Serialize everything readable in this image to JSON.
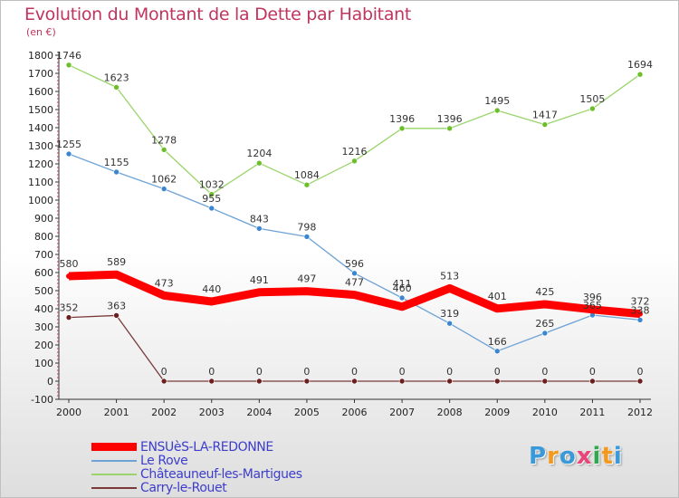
{
  "title": "Evolution du Montant de la Dette par Habitant",
  "unit_label": "(en €)",
  "logo": {
    "text": "Proxiti",
    "colors": [
      "#3a9ad9",
      "#f29a1d",
      "#3a9ad9",
      "#e8457a",
      "#2fa84f",
      "#f29a1d",
      "#3a9ad9"
    ]
  },
  "chart_data": {
    "type": "line",
    "x": [
      "2000",
      "2001",
      "2002",
      "2003",
      "2004",
      "2005",
      "2006",
      "2007",
      "2008",
      "2009",
      "2010",
      "2011",
      "2012"
    ],
    "ylim": [
      -100,
      1800
    ],
    "yticks": [
      -100,
      0,
      100,
      200,
      300,
      400,
      500,
      600,
      700,
      800,
      900,
      1000,
      1100,
      1200,
      1300,
      1400,
      1500,
      1600,
      1700,
      1800
    ],
    "grid": false,
    "legend_position": "bottom-left",
    "series": [
      {
        "name": "ENSUèS-LA-REDONNE",
        "color": "#ff0000",
        "marker": "#ff0000",
        "width": 9,
        "values": [
          580,
          589,
          473,
          440,
          491,
          497,
          477,
          411,
          513,
          401,
          425,
          396,
          372
        ],
        "labels": [
          "580",
          "589",
          "473",
          "440",
          "491",
          "497",
          "477",
          "",
          "513",
          "401",
          "425",
          "396",
          "372"
        ]
      },
      {
        "name": "Le Rove",
        "color": "#6fa3d6",
        "marker": "#3a86d0",
        "width": 1.3,
        "values": [
          1255,
          1155,
          1062,
          955,
          843,
          798,
          596,
          460,
          319,
          166,
          265,
          365,
          338
        ],
        "labels": [
          "1255",
          "1155",
          "1062",
          "955",
          "843",
          "798",
          "596",
          "460",
          "319",
          "166",
          "265",
          "365",
          "338"
        ]
      },
      {
        "name": "Châteauneuf-les-Martigues",
        "color": "#9ad46a",
        "marker": "#6cbf2a",
        "width": 1.3,
        "values": [
          1746,
          1623,
          1278,
          1032,
          1204,
          1084,
          1216,
          1396,
          1396,
          1495,
          1417,
          1505,
          1694
        ],
        "labels": [
          "1746",
          "1623",
          "1278",
          "1032",
          "1204",
          "1084",
          "1216",
          "1396",
          "1396",
          "1495",
          "1417",
          "1505",
          "1694"
        ]
      },
      {
        "name": "Carry-le-Rouet",
        "color": "#7a3a3a",
        "marker": "#6b1f1f",
        "width": 1.3,
        "values": [
          352,
          363,
          0,
          0,
          0,
          0,
          0,
          0,
          0,
          0,
          0,
          0,
          0
        ],
        "labels": [
          "352",
          "363",
          "0",
          "0",
          "0",
          "0",
          "0",
          "0",
          "0",
          "0",
          "0",
          "0",
          "0"
        ]
      }
    ],
    "extra_labels": [
      {
        "series": 0,
        "index": 7,
        "text": "411"
      }
    ]
  }
}
